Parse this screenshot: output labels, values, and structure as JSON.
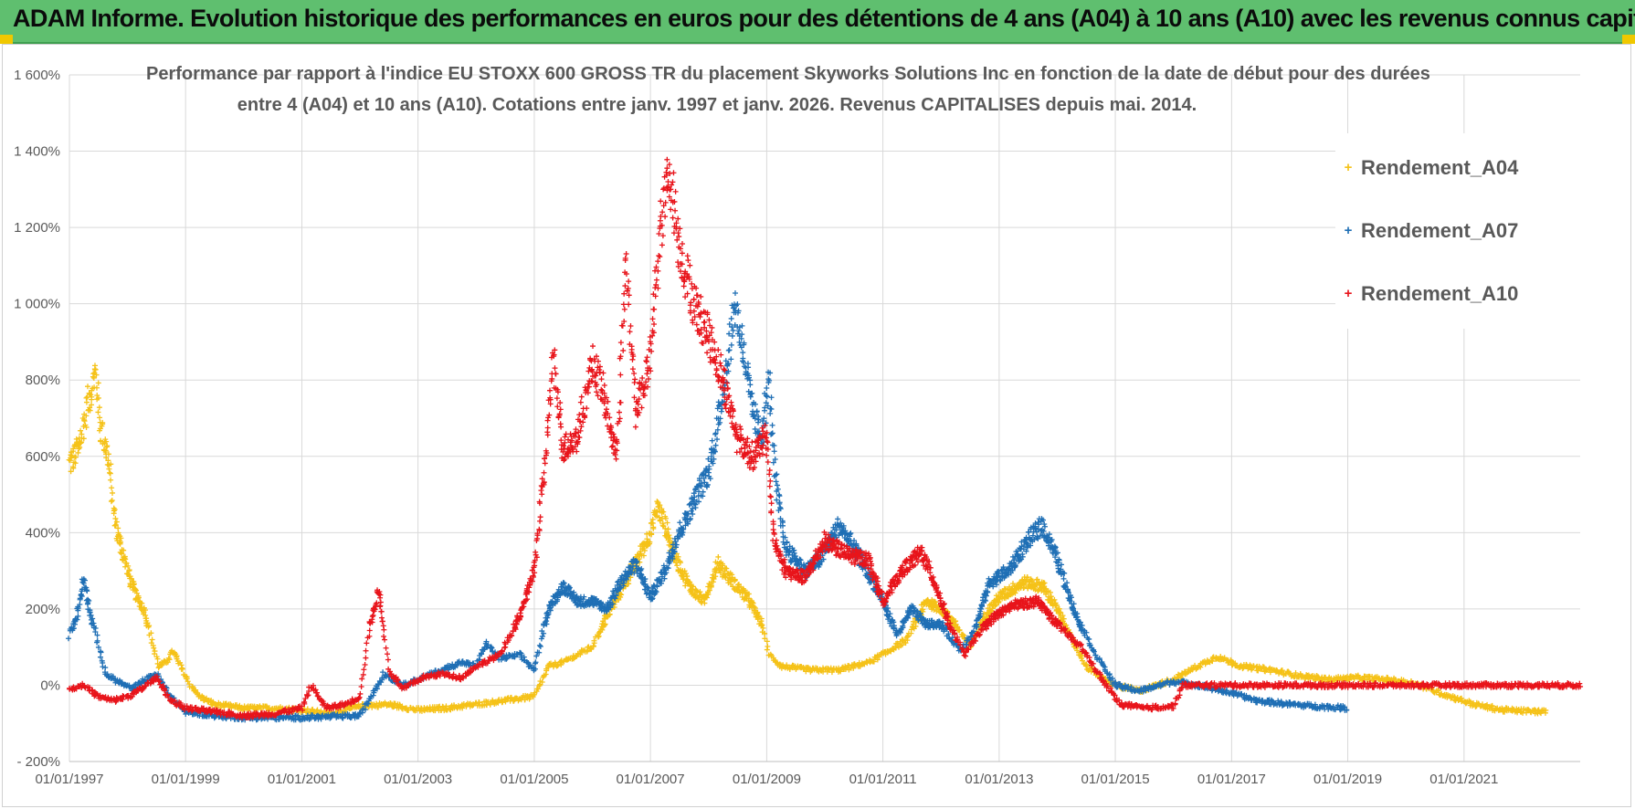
{
  "header": {
    "title": "ADAM Informe. Evolution historique des performances en euros pour des détentions de 4 ans (A04) à 10 ans (A10) avec les revenus connus capitalisés"
  },
  "chart_data": {
    "type": "scatter",
    "title_line1": "Performance par rapport à l'indice EU STOXX 600 GROSS TR  du placement Skyworks Solutions Inc en fonction de la date de début pour des durées",
    "title_line2": "entre 4 (A04) et 10 ans (A10).  Cotations entre janv. 1997 et janv. 2026. Revenus CAPITALISES depuis mai. 2014.",
    "xlabel": "",
    "ylabel": "",
    "x_ticks": [
      "01/01/1997",
      "01/01/1999",
      "01/01/2001",
      "01/01/2003",
      "01/01/2005",
      "01/01/2007",
      "01/01/2009",
      "01/01/2011",
      "01/01/2013",
      "01/01/2015",
      "01/01/2017",
      "01/01/2019",
      "01/01/2021"
    ],
    "y_ticks": [
      "- 200%",
      "0%",
      "200%",
      "400%",
      "600%",
      "800%",
      "1 000%",
      "1 200%",
      "1 400%",
      "1 600%"
    ],
    "xlim": [
      "1997-01-01",
      "2023-01-01"
    ],
    "ylim": [
      -200,
      1600
    ],
    "grid": true,
    "legend_position": "top-right",
    "marker": "+",
    "series": [
      {
        "name": "Rendement_A04",
        "color": "#f5c218",
        "start": "1997-01-01",
        "end": "2022-05-31",
        "points": [
          [
            "1997-01-01",
            580
          ],
          [
            "1997-03-01",
            620
          ],
          [
            "1997-05-01",
            750
          ],
          [
            "1997-06-15",
            820
          ],
          [
            "1997-07-15",
            680
          ],
          [
            "1997-09-01",
            600
          ],
          [
            "1997-10-15",
            420
          ],
          [
            "1997-12-01",
            350
          ],
          [
            "1998-01-15",
            280
          ],
          [
            "1998-03-01",
            230
          ],
          [
            "1998-04-15",
            200
          ],
          [
            "1998-06-01",
            120
          ],
          [
            "1998-07-15",
            50
          ],
          [
            "1998-09-01",
            60
          ],
          [
            "1998-10-15",
            90
          ],
          [
            "1998-12-01",
            50
          ],
          [
            "1999-02-01",
            0
          ],
          [
            "1999-04-01",
            -30
          ],
          [
            "1999-07-01",
            -50
          ],
          [
            "2000-01-01",
            -60
          ],
          [
            "2000-07-01",
            -60
          ],
          [
            "2001-01-01",
            -65
          ],
          [
            "2001-07-01",
            -75
          ],
          [
            "2002-01-01",
            -55
          ],
          [
            "2002-07-01",
            -50
          ],
          [
            "2003-01-01",
            -65
          ],
          [
            "2003-07-01",
            -60
          ],
          [
            "2004-01-01",
            -50
          ],
          [
            "2004-07-01",
            -40
          ],
          [
            "2005-01-01",
            -30
          ],
          [
            "2005-04-01",
            50
          ],
          [
            "2005-07-01",
            60
          ],
          [
            "2006-01-01",
            100
          ],
          [
            "2006-04-01",
            180
          ],
          [
            "2006-07-01",
            250
          ],
          [
            "2006-10-01",
            320
          ],
          [
            "2007-01-01",
            400
          ],
          [
            "2007-02-15",
            470
          ],
          [
            "2007-04-01",
            420
          ],
          [
            "2007-06-01",
            340
          ],
          [
            "2007-09-01",
            260
          ],
          [
            "2007-12-01",
            220
          ],
          [
            "2008-03-01",
            320
          ],
          [
            "2008-06-01",
            270
          ],
          [
            "2008-09-01",
            230
          ],
          [
            "2008-12-01",
            160
          ],
          [
            "2009-01-15",
            80
          ],
          [
            "2009-04-01",
            50
          ],
          [
            "2009-10-01",
            40
          ],
          [
            "2010-04-01",
            40
          ],
          [
            "2010-10-01",
            60
          ],
          [
            "2011-01-01",
            80
          ],
          [
            "2011-06-01",
            120
          ],
          [
            "2011-10-01",
            220
          ],
          [
            "2012-01-01",
            200
          ],
          [
            "2012-04-01",
            160
          ],
          [
            "2012-07-01",
            100
          ],
          [
            "2012-10-01",
            180
          ],
          [
            "2013-01-01",
            230
          ],
          [
            "2013-06-01",
            270
          ],
          [
            "2013-10-01",
            260
          ],
          [
            "2014-01-01",
            200
          ],
          [
            "2014-04-01",
            120
          ],
          [
            "2014-07-01",
            50
          ],
          [
            "2014-10-01",
            20
          ],
          [
            "2015-01-01",
            0
          ],
          [
            "2015-06-01",
            -15
          ],
          [
            "2016-01-01",
            15
          ],
          [
            "2016-06-01",
            50
          ],
          [
            "2016-10-01",
            75
          ],
          [
            "2017-03-01",
            50
          ],
          [
            "2017-09-01",
            40
          ],
          [
            "2018-03-01",
            25
          ],
          [
            "2018-09-01",
            15
          ],
          [
            "2019-03-01",
            20
          ],
          [
            "2019-09-01",
            15
          ],
          [
            "2020-03-01",
            5
          ],
          [
            "2020-09-01",
            -25
          ],
          [
            "2021-03-01",
            -50
          ],
          [
            "2021-09-01",
            -65
          ],
          [
            "2022-05-31",
            -70
          ]
        ]
      },
      {
        "name": "Rendement_A07",
        "color": "#1f6fb5",
        "start": "1997-01-01",
        "end": "2018-12-31",
        "points": [
          [
            "1997-01-01",
            130
          ],
          [
            "1997-02-15",
            180
          ],
          [
            "1997-04-01",
            280
          ],
          [
            "1997-05-15",
            180
          ],
          [
            "1997-07-01",
            110
          ],
          [
            "1997-08-15",
            30
          ],
          [
            "1997-11-01",
            10
          ],
          [
            "1998-02-01",
            -10
          ],
          [
            "1998-04-01",
            10
          ],
          [
            "1998-07-01",
            30
          ],
          [
            "1998-10-01",
            -30
          ],
          [
            "1999-01-01",
            -70
          ],
          [
            "1999-07-01",
            -80
          ],
          [
            "2000-01-01",
            -85
          ],
          [
            "2001-01-01",
            -85
          ],
          [
            "2002-01-01",
            -80
          ],
          [
            "2002-06-01",
            30
          ],
          [
            "2002-10-01",
            0
          ],
          [
            "2003-02-01",
            20
          ],
          [
            "2003-06-01",
            40
          ],
          [
            "2003-10-01",
            60
          ],
          [
            "2004-01-01",
            50
          ],
          [
            "2004-03-01",
            110
          ],
          [
            "2004-06-01",
            70
          ],
          [
            "2004-10-01",
            80
          ],
          [
            "2005-01-01",
            40
          ],
          [
            "2005-04-01",
            200
          ],
          [
            "2005-07-01",
            260
          ],
          [
            "2005-10-01",
            220
          ],
          [
            "2006-01-01",
            220
          ],
          [
            "2006-04-01",
            200
          ],
          [
            "2006-07-01",
            270
          ],
          [
            "2006-10-01",
            320
          ],
          [
            "2007-01-01",
            230
          ],
          [
            "2007-04-01",
            300
          ],
          [
            "2007-07-01",
            400
          ],
          [
            "2007-10-01",
            480
          ],
          [
            "2008-01-01",
            560
          ],
          [
            "2008-03-01",
            680
          ],
          [
            "2008-05-01",
            850
          ],
          [
            "2008-06-15",
            1000
          ],
          [
            "2008-08-01",
            900
          ],
          [
            "2008-10-01",
            720
          ],
          [
            "2008-12-01",
            650
          ],
          [
            "2009-01-15",
            800
          ],
          [
            "2009-03-01",
            520
          ],
          [
            "2009-05-01",
            360
          ],
          [
            "2009-09-01",
            300
          ],
          [
            "2009-12-01",
            330
          ],
          [
            "2010-04-01",
            420
          ],
          [
            "2010-08-01",
            340
          ],
          [
            "2011-01-01",
            220
          ],
          [
            "2011-04-01",
            130
          ],
          [
            "2011-07-01",
            200
          ],
          [
            "2011-10-01",
            160
          ],
          [
            "2012-01-01",
            160
          ],
          [
            "2012-05-01",
            90
          ],
          [
            "2012-08-01",
            150
          ],
          [
            "2012-11-01",
            270
          ],
          [
            "2013-03-01",
            300
          ],
          [
            "2013-07-01",
            380
          ],
          [
            "2013-10-01",
            420
          ],
          [
            "2014-01-01",
            330
          ],
          [
            "2014-05-01",
            180
          ],
          [
            "2014-09-01",
            80
          ],
          [
            "2015-01-01",
            0
          ],
          [
            "2015-06-01",
            -15
          ],
          [
            "2016-01-01",
            10
          ],
          [
            "2016-06-01",
            0
          ],
          [
            "2017-01-01",
            -20
          ],
          [
            "2017-06-01",
            -40
          ],
          [
            "2018-01-01",
            -50
          ],
          [
            "2018-06-01",
            -55
          ],
          [
            "2018-12-31",
            -60
          ]
        ]
      },
      {
        "name": "Rendement_A10",
        "color": "#e8141b",
        "start": "1997-01-01",
        "end": "2022-12-31",
        "points": [
          [
            "1997-01-01",
            -10
          ],
          [
            "1997-04-01",
            0
          ],
          [
            "1997-07-01",
            -30
          ],
          [
            "1997-10-01",
            -40
          ],
          [
            "1998-01-01",
            -30
          ],
          [
            "1998-04-01",
            -10
          ],
          [
            "1998-07-01",
            20
          ],
          [
            "1998-10-01",
            -40
          ],
          [
            "1999-01-01",
            -60
          ],
          [
            "1999-07-01",
            -70
          ],
          [
            "2000-01-01",
            -80
          ],
          [
            "2000-07-01",
            -75
          ],
          [
            "2001-01-01",
            -60
          ],
          [
            "2001-03-01",
            0
          ],
          [
            "2001-06-01",
            -60
          ],
          [
            "2001-10-01",
            -50
          ],
          [
            "2002-01-01",
            -30
          ],
          [
            "2002-03-01",
            150
          ],
          [
            "2002-05-01",
            250
          ],
          [
            "2002-07-01",
            40
          ],
          [
            "2002-10-01",
            -10
          ],
          [
            "2003-02-01",
            20
          ],
          [
            "2003-06-01",
            30
          ],
          [
            "2003-10-01",
            20
          ],
          [
            "2004-01-01",
            50
          ],
          [
            "2004-06-01",
            80
          ],
          [
            "2004-10-01",
            180
          ],
          [
            "2005-01-01",
            300
          ],
          [
            "2005-03-01",
            550
          ],
          [
            "2005-05-01",
            850
          ],
          [
            "2005-07-01",
            620
          ],
          [
            "2005-10-01",
            650
          ],
          [
            "2006-01-01",
            850
          ],
          [
            "2006-03-01",
            780
          ],
          [
            "2006-06-01",
            600
          ],
          [
            "2006-08-01",
            1100
          ],
          [
            "2006-10-01",
            720
          ],
          [
            "2007-01-01",
            850
          ],
          [
            "2007-03-01",
            1180
          ],
          [
            "2007-05-01",
            1350
          ],
          [
            "2007-07-01",
            1150
          ],
          [
            "2007-10-01",
            1000
          ],
          [
            "2008-01-01",
            920
          ],
          [
            "2008-04-01",
            800
          ],
          [
            "2008-07-01",
            650
          ],
          [
            "2008-10-01",
            600
          ],
          [
            "2009-01-01",
            650
          ],
          [
            "2009-02-15",
            380
          ],
          [
            "2009-05-01",
            300
          ],
          [
            "2009-09-01",
            280
          ],
          [
            "2010-01-01",
            380
          ],
          [
            "2010-06-01",
            340
          ],
          [
            "2010-10-01",
            330
          ],
          [
            "2011-01-01",
            220
          ],
          [
            "2011-05-01",
            300
          ],
          [
            "2011-09-01",
            350
          ],
          [
            "2011-12-01",
            260
          ],
          [
            "2012-03-01",
            150
          ],
          [
            "2012-06-01",
            80
          ],
          [
            "2012-09-01",
            140
          ],
          [
            "2012-12-01",
            180
          ],
          [
            "2013-04-01",
            210
          ],
          [
            "2013-09-01",
            220
          ],
          [
            "2014-01-01",
            160
          ],
          [
            "2014-06-01",
            100
          ],
          [
            "2014-10-01",
            20
          ],
          [
            "2015-02-01",
            -50
          ],
          [
            "2015-07-01",
            -60
          ],
          [
            "2016-01-01",
            -55
          ],
          [
            "2016-03-01",
            0
          ],
          [
            "2017-01-01",
            0
          ],
          [
            "2018-01-01",
            0
          ],
          [
            "2019-01-01",
            0
          ],
          [
            "2020-01-01",
            0
          ],
          [
            "2021-01-01",
            0
          ],
          [
            "2022-01-01",
            0
          ],
          [
            "2022-12-31",
            0
          ]
        ]
      }
    ]
  }
}
